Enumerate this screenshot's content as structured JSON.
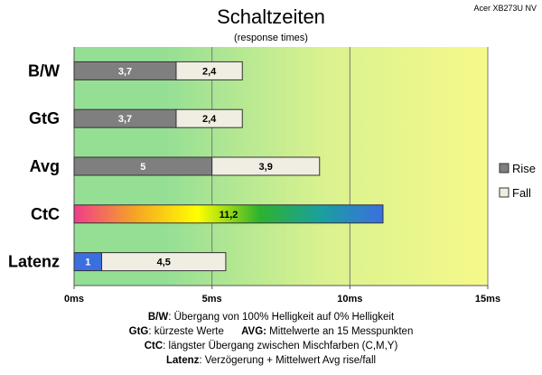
{
  "title": "Schaltzeiten",
  "subtitle": "(response times)",
  "brand": "Acer XB273U NV",
  "colors": {
    "rise": "#7f7f7f",
    "fall": "#f0ede3",
    "latenz_rise": "#3b6fe0",
    "bg_green": "#95df95",
    "bg_yellow": "#f6f98a",
    "ctc_gradient": [
      "#f03c8c",
      "#f5a623",
      "#ffff00",
      "#2db32d",
      "#1a9f9f",
      "#3b6fe0"
    ]
  },
  "chart_data": {
    "type": "bar",
    "orientation": "horizontal",
    "stacked": true,
    "categories": [
      "B/W",
      "GtG",
      "Avg",
      "CtC",
      "Latenz"
    ],
    "series": [
      {
        "name": "Rise",
        "values": [
          3.7,
          3.7,
          5,
          null,
          1
        ]
      },
      {
        "name": "Fall",
        "values": [
          2.4,
          2.4,
          3.9,
          null,
          4.5
        ]
      },
      {
        "name": "",
        "values": [
          null,
          null,
          null,
          11.2,
          null
        ]
      }
    ],
    "data_labels": {
      "Rise": [
        "3,7",
        "3,7",
        "5",
        "",
        "1"
      ],
      "Fall": [
        "2,4",
        "2,4",
        "3,9",
        "",
        "4,5"
      ],
      "CtC": "11,2"
    },
    "x_ticks": [
      0,
      5,
      10,
      15
    ],
    "x_tick_labels": [
      "0ms",
      "5ms",
      "10ms",
      "15ms"
    ],
    "xlim": [
      0,
      15
    ],
    "grid": true,
    "legend_position": "right",
    "legend": [
      "Rise",
      "Fall"
    ]
  },
  "notes": [
    {
      "key": "B/W",
      "text": ":  Übergang von 100% Helligkeit auf 0% Helligkeit"
    },
    {
      "key": "GtG",
      "text": ": kürzeste  Werte",
      "key2": "AVG:",
      "text2": " Mittelwerte  an 15 Messpunkten"
    },
    {
      "key": "CtC",
      "text": ": längster Übergang  zwischen Mischfarben (C,M,Y)"
    },
    {
      "key": "Latenz",
      "text": ": Verzögerung  + Mittelwert  Avg rise/fall"
    }
  ]
}
